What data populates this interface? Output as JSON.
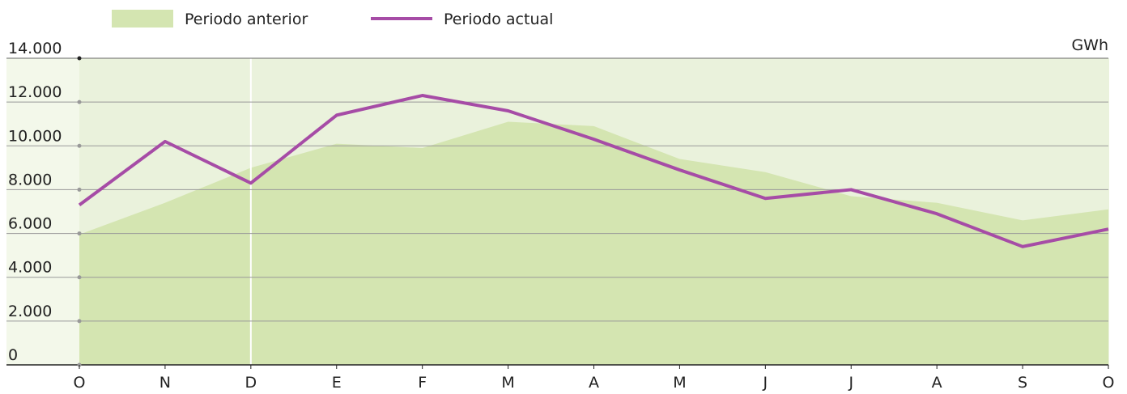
{
  "chart_data": {
    "type": "area-line",
    "unit_label": "GWh",
    "categories": [
      "O",
      "N",
      "D",
      "E",
      "F",
      "M",
      "A",
      "M",
      "J",
      "J",
      "A",
      "S",
      "O"
    ],
    "series": [
      {
        "name": "Periodo anterior",
        "color": "#d4e5b1",
        "kind": "area",
        "values": [
          5950,
          7400,
          9000,
          10100,
          9900,
          11100,
          10900,
          9400,
          8800,
          7700,
          7400,
          6600,
          7100
        ]
      },
      {
        "name": "Periodo actual",
        "color": "#a64ca6",
        "kind": "line",
        "values": [
          7300,
          10200,
          8300,
          11400,
          12300,
          11600,
          10300,
          8900,
          7600,
          8000,
          6900,
          5400,
          6200
        ]
      }
    ],
    "ylim": [
      0,
      14000
    ],
    "yticks": [
      0,
      {
        "value": 2000,
        "label": "2.000"
      },
      {
        "value": 4000,
        "label": "4.000"
      },
      {
        "value": 6000,
        "label": "6.000"
      },
      {
        "value": 8000,
        "label": "8.000"
      },
      {
        "value": 10000,
        "label": "10.000"
      },
      {
        "value": 12000,
        "label": "12.000"
      },
      {
        "value": 14000,
        "label": "14.000"
      }
    ],
    "grid": true
  }
}
